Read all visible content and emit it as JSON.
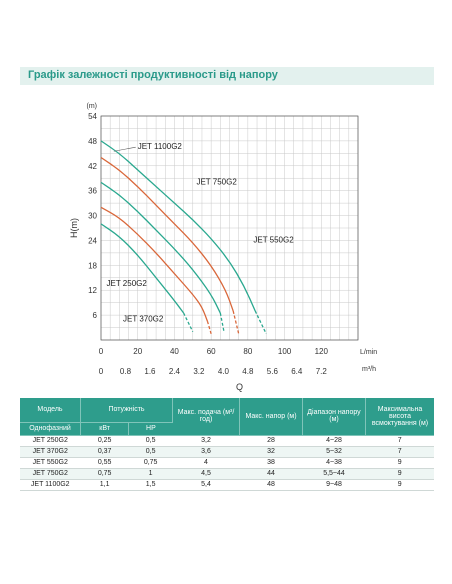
{
  "header": {
    "title": "Графік залежності продуктивності від напору"
  },
  "chart_data": {
    "type": "line",
    "title": "",
    "ylabel": "H(m)",
    "y_unit": "(m)",
    "xlabel": "Q",
    "x_unit": "L/min",
    "x2_unit": "m³/h",
    "xlim": [
      0,
      140
    ],
    "ylim": [
      0,
      54
    ],
    "x_ticks": [
      "0",
      "20",
      "40",
      "60",
      "80",
      "100",
      "120"
    ],
    "x2_ticks": [
      "0",
      "0.8",
      "1.6",
      "2.4",
      "3.2",
      "4.0",
      "4.8",
      "5.6",
      "6.4",
      "7.2"
    ],
    "y_ticks": [
      "6",
      "12",
      "18",
      "24",
      "30",
      "36",
      "42",
      "48",
      "54"
    ],
    "grid": true,
    "series": [
      {
        "name": "JET 250G2",
        "color": "#2aa88f",
        "points": [
          [
            0,
            28
          ],
          [
            10,
            25
          ],
          [
            20,
            20.5
          ],
          [
            30,
            15
          ],
          [
            40,
            9.5
          ],
          [
            45,
            6.5
          ]
        ],
        "dash_points": [
          [
            45,
            6.5
          ],
          [
            50,
            2
          ]
        ]
      },
      {
        "name": "JET 370G2",
        "color": "#d9673a",
        "points": [
          [
            0,
            32
          ],
          [
            10,
            29.5
          ],
          [
            20,
            25.5
          ],
          [
            30,
            21
          ],
          [
            40,
            16
          ],
          [
            50,
            11
          ],
          [
            55,
            8
          ],
          [
            58,
            4.5
          ]
        ],
        "dash_points": [
          [
            58,
            4.5
          ],
          [
            60,
            1.5
          ]
        ]
      },
      {
        "name": "JET 550G2",
        "color": "#2aa88f",
        "points": [
          [
            0,
            38
          ],
          [
            10,
            35
          ],
          [
            20,
            31
          ],
          [
            30,
            26.5
          ],
          [
            40,
            22
          ],
          [
            50,
            17
          ],
          [
            60,
            11
          ],
          [
            65,
            6.5
          ]
        ],
        "dash_points": [
          [
            65,
            6.5
          ],
          [
            67,
            2
          ]
        ]
      },
      {
        "name": "JET 750G2",
        "color": "#d9673a",
        "points": [
          [
            0,
            44
          ],
          [
            10,
            41
          ],
          [
            20,
            37
          ],
          [
            30,
            32.5
          ],
          [
            40,
            28
          ],
          [
            50,
            23.5
          ],
          [
            60,
            18
          ],
          [
            68,
            12
          ],
          [
            72,
            7
          ]
        ],
        "dash_points": [
          [
            72,
            7
          ],
          [
            75,
            1.5
          ]
        ]
      },
      {
        "name": "JET 1100G2",
        "color": "#2aa88f",
        "points": [
          [
            0,
            48
          ],
          [
            10,
            45
          ],
          [
            20,
            41
          ],
          [
            30,
            37
          ],
          [
            40,
            33
          ],
          [
            50,
            29
          ],
          [
            60,
            24.5
          ],
          [
            70,
            19
          ],
          [
            78,
            13
          ],
          [
            84,
            7
          ]
        ],
        "dash_points": [
          [
            84,
            7
          ],
          [
            90,
            1.5
          ]
        ]
      }
    ],
    "annotations": [
      {
        "text": "JET 1100G2",
        "x": 20,
        "y": 46
      },
      {
        "text": "JET 750G2",
        "x": 52,
        "y": 37.5
      },
      {
        "text": "JET 550G2",
        "x": 83,
        "y": 23.5
      },
      {
        "text": "JET 250G2",
        "x": 3,
        "y": 13
      },
      {
        "text": "JET 370G2",
        "x": 12,
        "y": 4.5
      }
    ]
  },
  "table": {
    "group_headers": {
      "model": "Модель",
      "power": "Потужність",
      "flow": "Макс. подача (м³/год)",
      "head": "Макс. напор (м)",
      "range": "Діапазон напору (м)",
      "suction": "Максимальна висота всмоктування (м)"
    },
    "sub_headers": {
      "type": "Однофазний",
      "kw": "кВт",
      "hp": "HP"
    },
    "rows": [
      [
        "JET 250G2",
        "0,25",
        "0,5",
        "3,2",
        "28",
        "4~28",
        "7"
      ],
      [
        "JET 370G2",
        "0,37",
        "0,5",
        "3,6",
        "32",
        "5~32",
        "7"
      ],
      [
        "JET 550G2",
        "0,55",
        "0,75",
        "4",
        "38",
        "4~38",
        "9"
      ],
      [
        "JET 750G2",
        "0,75",
        "1",
        "4,5",
        "44",
        "5,5~44",
        "9"
      ],
      [
        "JET 1100G2",
        "1,1",
        "1,5",
        "5,4",
        "48",
        "9~48",
        "9"
      ]
    ]
  }
}
